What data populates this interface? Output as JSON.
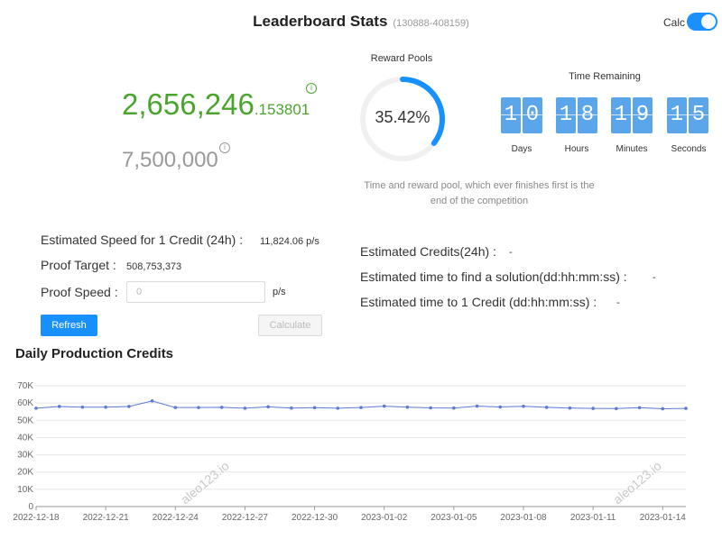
{
  "header": {
    "title": "Leaderboard Stats",
    "range": "(130888-408159)",
    "calc_label": "Calc",
    "calc_enabled": true
  },
  "stats": {
    "total_int": "2,656,246",
    "total_frac": ".153801",
    "target": "7,500,000",
    "info_icon": "info-circle-icon"
  },
  "reward_pool": {
    "label": "Reward Pools",
    "percent_text": "35.42%",
    "percent_value": 35.42,
    "note_line1": "Time and reward pool, which ever finishes first is the",
    "note_line2": "end of the competition"
  },
  "timer": {
    "label": "Time Remaining",
    "units": [
      {
        "digits": [
          "1",
          "0"
        ],
        "label": "Days"
      },
      {
        "digits": [
          "1",
          "8"
        ],
        "label": "Hours"
      },
      {
        "digits": [
          "1",
          "9"
        ],
        "label": "Minutes"
      },
      {
        "digits": [
          "1",
          "5"
        ],
        "label": "Seconds"
      }
    ]
  },
  "form": {
    "speed_label": "Estimated Speed for 1 Credit (24h) :",
    "speed_value": "11,824.06 p/s",
    "proof_target_label": "Proof Target :",
    "proof_target_value": "508,753,373",
    "proof_speed_label": "Proof Speed :",
    "proof_speed_placeholder": "0",
    "proof_speed_unit": "p/s",
    "refresh_label": "Refresh",
    "calculate_label": "Calculate"
  },
  "estimates": {
    "credits_label": "Estimated Credits(24h) :",
    "credits_value": "-",
    "solution_time_label": "Estimated time to find a solution(dd:hh:mm:ss) :",
    "solution_time_value": "-",
    "credit_time_label": "Estimated time to 1 Credit (dd:hh:mm:ss) :",
    "credit_time_value": "-"
  },
  "chart_data": {
    "type": "line",
    "title": "Daily Production Credits",
    "ylim": [
      0,
      70000
    ],
    "yticks": [
      "0",
      "10K",
      "20K",
      "30K",
      "40K",
      "50K",
      "60K",
      "70K"
    ],
    "xticks": [
      "2022-12-18",
      "2022-12-21",
      "2022-12-24",
      "2022-12-27",
      "2022-12-30",
      "2023-01-02",
      "2023-01-05",
      "2023-01-08",
      "2023-01-11",
      "2023-01-14"
    ],
    "x": [
      "2022-12-18",
      "2022-12-19",
      "2022-12-20",
      "2022-12-21",
      "2022-12-22",
      "2022-12-23",
      "2022-12-24",
      "2022-12-25",
      "2022-12-26",
      "2022-12-27",
      "2022-12-28",
      "2022-12-29",
      "2022-12-30",
      "2022-12-31",
      "2023-01-01",
      "2023-01-02",
      "2023-01-03",
      "2023-01-04",
      "2023-01-05",
      "2023-01-06",
      "2023-01-07",
      "2023-01-08",
      "2023-01-09",
      "2023-01-10",
      "2023-01-11",
      "2023-01-12",
      "2023-01-13",
      "2023-01-14",
      "2023-01-15"
    ],
    "values": [
      57000,
      58000,
      57600,
      57600,
      58000,
      61200,
      57400,
      57400,
      57500,
      57000,
      57800,
      57100,
      57300,
      57000,
      57400,
      58200,
      57600,
      57200,
      57100,
      58200,
      57700,
      58100,
      57500,
      57100,
      56900,
      56800,
      57300,
      56700,
      56900
    ],
    "color": "#5b7bd5",
    "grid": true,
    "watermark": "aleo123.io"
  }
}
